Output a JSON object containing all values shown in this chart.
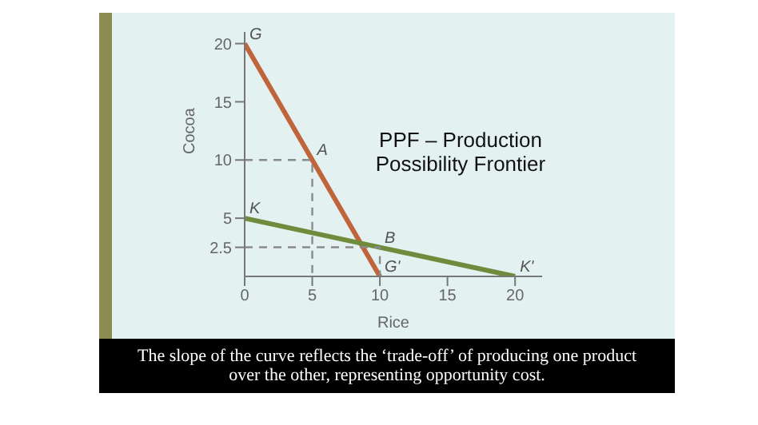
{
  "chart_data": {
    "type": "line",
    "title": "PPF – Production Possibility Frontier",
    "xlabel": "Rice",
    "ylabel": "Cocoa",
    "series": [
      {
        "color": "#c0643c",
        "x": [
          0,
          5,
          10
        ],
        "values": [
          20,
          10,
          0
        ]
      },
      {
        "color": "#6f8c3c",
        "x": [
          0,
          10,
          20
        ],
        "values": [
          5,
          2.5,
          0
        ]
      },
      {
        "type": "line",
        "color": "#8a8a8a",
        "line_style": "dashed",
        "x": [
          0,
          5,
          5
        ],
        "values": [
          10,
          10,
          0
        ]
      },
      {
        "type": "line",
        "color": "#8a8a8a",
        "line_style": "dashed",
        "x": [
          0,
          10,
          10
        ],
        "values": [
          2.5,
          2.5,
          0
        ]
      }
    ],
    "xlim": [
      0,
      22
    ],
    "xticks": [
      0,
      5,
      10,
      15,
      20
    ],
    "ylim": [
      0,
      21
    ],
    "yticks": [
      2.5,
      5,
      10,
      15,
      20
    ],
    "marker": "none",
    "line_style": "solid",
    "grid": false,
    "legend": false,
    "annotations": [
      {
        "text": "G",
        "x": 0,
        "y": 20
      },
      {
        "text": "A",
        "x": 5,
        "y": 10
      },
      {
        "text": "G'",
        "x": 10,
        "y": 0
      },
      {
        "text": "K",
        "x": 0,
        "y": 5
      },
      {
        "text": "B",
        "x": 10,
        "y": 2.5
      },
      {
        "text": "K'",
        "x": 20,
        "y": 0
      },
      "The slope of the curve reflects the ‘trade-off’ of producing one product over the other, representing opportunity cost."
    ]
  }
}
